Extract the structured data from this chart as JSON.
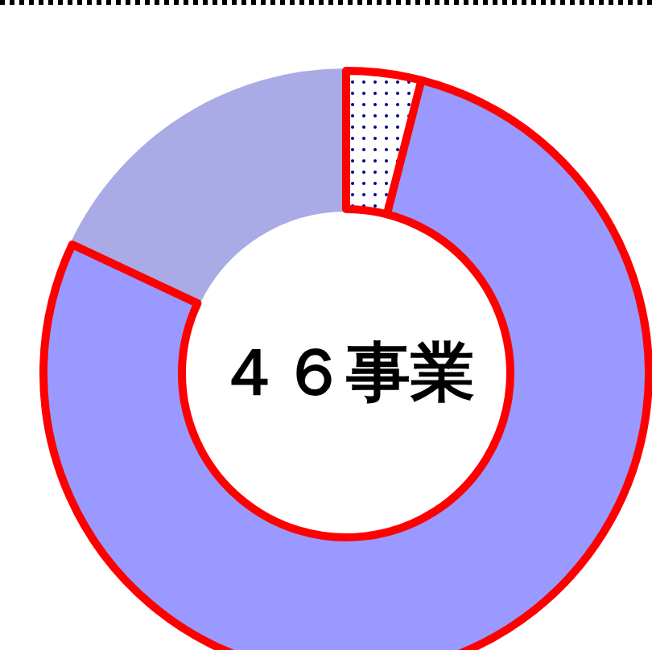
{
  "chart_data": {
    "type": "donut",
    "title": "４６事業",
    "categories": [
      null,
      null,
      null
    ],
    "values": [
      4,
      78,
      18
    ],
    "colors": [
      "#ffffff",
      "#9999ff",
      "#aaaae6"
    ]
  }
}
